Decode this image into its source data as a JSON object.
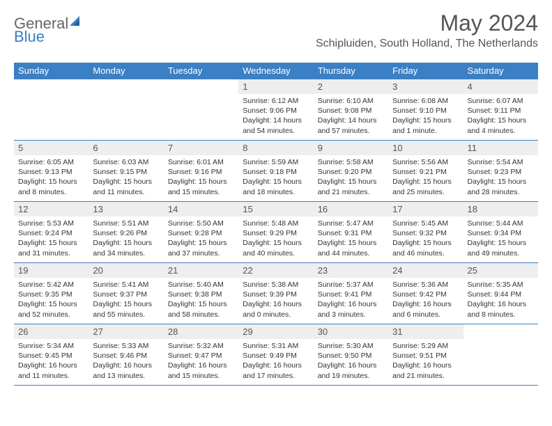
{
  "brand": {
    "part1": "General",
    "part2": "Blue"
  },
  "title": {
    "month": "May 2024",
    "location": "Schipluiden, South Holland, The Netherlands"
  },
  "colors": {
    "accent": "#3b7fc4",
    "header_bg": "#3b7fc4",
    "daynum_bg": "#eeeeee",
    "text": "#333333",
    "page_bg": "#ffffff"
  },
  "columns": [
    "Sunday",
    "Monday",
    "Tuesday",
    "Wednesday",
    "Thursday",
    "Friday",
    "Saturday"
  ],
  "weeks": [
    [
      {
        "n": "",
        "sr": "",
        "ss": "",
        "dl": ""
      },
      {
        "n": "",
        "sr": "",
        "ss": "",
        "dl": ""
      },
      {
        "n": "",
        "sr": "",
        "ss": "",
        "dl": ""
      },
      {
        "n": "1",
        "sr": "Sunrise: 6:12 AM",
        "ss": "Sunset: 9:06 PM",
        "dl": "Daylight: 14 hours and 54 minutes."
      },
      {
        "n": "2",
        "sr": "Sunrise: 6:10 AM",
        "ss": "Sunset: 9:08 PM",
        "dl": "Daylight: 14 hours and 57 minutes."
      },
      {
        "n": "3",
        "sr": "Sunrise: 6:08 AM",
        "ss": "Sunset: 9:10 PM",
        "dl": "Daylight: 15 hours and 1 minute."
      },
      {
        "n": "4",
        "sr": "Sunrise: 6:07 AM",
        "ss": "Sunset: 9:11 PM",
        "dl": "Daylight: 15 hours and 4 minutes."
      }
    ],
    [
      {
        "n": "5",
        "sr": "Sunrise: 6:05 AM",
        "ss": "Sunset: 9:13 PM",
        "dl": "Daylight: 15 hours and 8 minutes."
      },
      {
        "n": "6",
        "sr": "Sunrise: 6:03 AM",
        "ss": "Sunset: 9:15 PM",
        "dl": "Daylight: 15 hours and 11 minutes."
      },
      {
        "n": "7",
        "sr": "Sunrise: 6:01 AM",
        "ss": "Sunset: 9:16 PM",
        "dl": "Daylight: 15 hours and 15 minutes."
      },
      {
        "n": "8",
        "sr": "Sunrise: 5:59 AM",
        "ss": "Sunset: 9:18 PM",
        "dl": "Daylight: 15 hours and 18 minutes."
      },
      {
        "n": "9",
        "sr": "Sunrise: 5:58 AM",
        "ss": "Sunset: 9:20 PM",
        "dl": "Daylight: 15 hours and 21 minutes."
      },
      {
        "n": "10",
        "sr": "Sunrise: 5:56 AM",
        "ss": "Sunset: 9:21 PM",
        "dl": "Daylight: 15 hours and 25 minutes."
      },
      {
        "n": "11",
        "sr": "Sunrise: 5:54 AM",
        "ss": "Sunset: 9:23 PM",
        "dl": "Daylight: 15 hours and 28 minutes."
      }
    ],
    [
      {
        "n": "12",
        "sr": "Sunrise: 5:53 AM",
        "ss": "Sunset: 9:24 PM",
        "dl": "Daylight: 15 hours and 31 minutes."
      },
      {
        "n": "13",
        "sr": "Sunrise: 5:51 AM",
        "ss": "Sunset: 9:26 PM",
        "dl": "Daylight: 15 hours and 34 minutes."
      },
      {
        "n": "14",
        "sr": "Sunrise: 5:50 AM",
        "ss": "Sunset: 9:28 PM",
        "dl": "Daylight: 15 hours and 37 minutes."
      },
      {
        "n": "15",
        "sr": "Sunrise: 5:48 AM",
        "ss": "Sunset: 9:29 PM",
        "dl": "Daylight: 15 hours and 40 minutes."
      },
      {
        "n": "16",
        "sr": "Sunrise: 5:47 AM",
        "ss": "Sunset: 9:31 PM",
        "dl": "Daylight: 15 hours and 44 minutes."
      },
      {
        "n": "17",
        "sr": "Sunrise: 5:45 AM",
        "ss": "Sunset: 9:32 PM",
        "dl": "Daylight: 15 hours and 46 minutes."
      },
      {
        "n": "18",
        "sr": "Sunrise: 5:44 AM",
        "ss": "Sunset: 9:34 PM",
        "dl": "Daylight: 15 hours and 49 minutes."
      }
    ],
    [
      {
        "n": "19",
        "sr": "Sunrise: 5:42 AM",
        "ss": "Sunset: 9:35 PM",
        "dl": "Daylight: 15 hours and 52 minutes."
      },
      {
        "n": "20",
        "sr": "Sunrise: 5:41 AM",
        "ss": "Sunset: 9:37 PM",
        "dl": "Daylight: 15 hours and 55 minutes."
      },
      {
        "n": "21",
        "sr": "Sunrise: 5:40 AM",
        "ss": "Sunset: 9:38 PM",
        "dl": "Daylight: 15 hours and 58 minutes."
      },
      {
        "n": "22",
        "sr": "Sunrise: 5:38 AM",
        "ss": "Sunset: 9:39 PM",
        "dl": "Daylight: 16 hours and 0 minutes."
      },
      {
        "n": "23",
        "sr": "Sunrise: 5:37 AM",
        "ss": "Sunset: 9:41 PM",
        "dl": "Daylight: 16 hours and 3 minutes."
      },
      {
        "n": "24",
        "sr": "Sunrise: 5:36 AM",
        "ss": "Sunset: 9:42 PM",
        "dl": "Daylight: 16 hours and 6 minutes."
      },
      {
        "n": "25",
        "sr": "Sunrise: 5:35 AM",
        "ss": "Sunset: 9:44 PM",
        "dl": "Daylight: 16 hours and 8 minutes."
      }
    ],
    [
      {
        "n": "26",
        "sr": "Sunrise: 5:34 AM",
        "ss": "Sunset: 9:45 PM",
        "dl": "Daylight: 16 hours and 11 minutes."
      },
      {
        "n": "27",
        "sr": "Sunrise: 5:33 AM",
        "ss": "Sunset: 9:46 PM",
        "dl": "Daylight: 16 hours and 13 minutes."
      },
      {
        "n": "28",
        "sr": "Sunrise: 5:32 AM",
        "ss": "Sunset: 9:47 PM",
        "dl": "Daylight: 16 hours and 15 minutes."
      },
      {
        "n": "29",
        "sr": "Sunrise: 5:31 AM",
        "ss": "Sunset: 9:49 PM",
        "dl": "Daylight: 16 hours and 17 minutes."
      },
      {
        "n": "30",
        "sr": "Sunrise: 5:30 AM",
        "ss": "Sunset: 9:50 PM",
        "dl": "Daylight: 16 hours and 19 minutes."
      },
      {
        "n": "31",
        "sr": "Sunrise: 5:29 AM",
        "ss": "Sunset: 9:51 PM",
        "dl": "Daylight: 16 hours and 21 minutes."
      },
      {
        "n": "",
        "sr": "",
        "ss": "",
        "dl": ""
      }
    ]
  ]
}
